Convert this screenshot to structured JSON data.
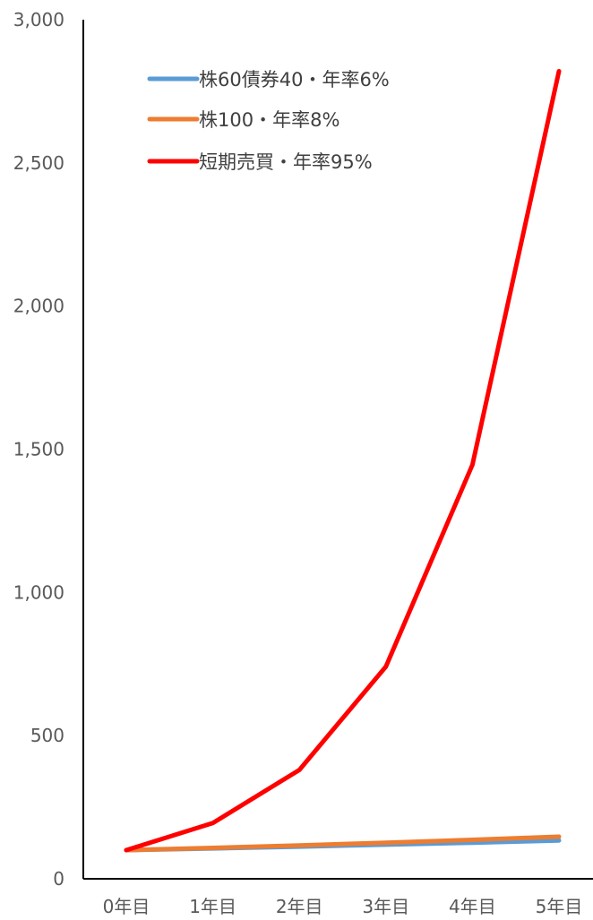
{
  "chart_data": {
    "type": "line",
    "title": "",
    "xlabel": "",
    "ylabel": "",
    "categories": [
      "0年目",
      "1年目",
      "2年目",
      "3年目",
      "4年目",
      "5年目"
    ],
    "ylim": [
      0,
      3000
    ],
    "yticks": [
      0,
      500,
      1000,
      1500,
      2000,
      2500,
      3000
    ],
    "ytick_labels": [
      "0",
      "500",
      "1,000",
      "1,500",
      "2,000",
      "2,500",
      "3,000"
    ],
    "grid": false,
    "legend_position": "top-left",
    "series": [
      {
        "name": "株60債券40・年率6%",
        "color": "#5B9BD5",
        "values": [
          100,
          106,
          112.4,
          119.1,
          126.2,
          133.8
        ]
      },
      {
        "name": "株100・年率8%",
        "color": "#ED7D31",
        "values": [
          100,
          108,
          116.6,
          126,
          136,
          146.9
        ]
      },
      {
        "name": "短期売買・年率95%",
        "color": "#FF0000",
        "values": [
          100,
          195,
          380,
          741,
          1446,
          2820
        ]
      }
    ]
  }
}
